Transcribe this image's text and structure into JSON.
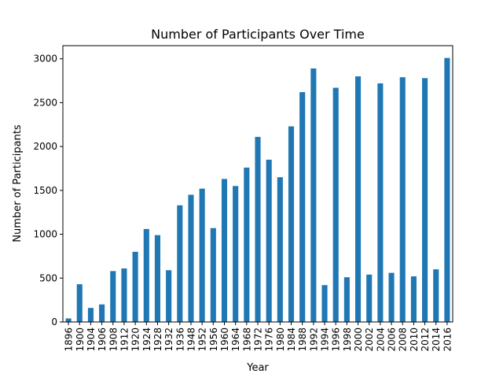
{
  "chart_data": {
    "type": "bar",
    "title": "Number of Participants Over Time",
    "xlabel": "Year",
    "ylabel": "Number of Participants",
    "categories": [
      "1896",
      "1900",
      "1904",
      "1906",
      "1908",
      "1912",
      "1920",
      "1924",
      "1928",
      "1932",
      "1936",
      "1948",
      "1952",
      "1956",
      "1960",
      "1964",
      "1968",
      "1972",
      "1976",
      "1980",
      "1984",
      "1988",
      "1992",
      "1994",
      "1996",
      "1998",
      "2000",
      "2002",
      "2004",
      "2006",
      "2008",
      "2010",
      "2012",
      "2014",
      "2016"
    ],
    "values": [
      40,
      430,
      160,
      200,
      580,
      610,
      800,
      1060,
      990,
      590,
      1330,
      1450,
      1520,
      1070,
      1630,
      1550,
      1760,
      2110,
      1850,
      1650,
      2230,
      2620,
      2890,
      420,
      2670,
      510,
      2800,
      540,
      2720,
      560,
      2790,
      520,
      2780,
      600,
      3010
    ],
    "ylim": [
      0,
      3150
    ],
    "yticks": [
      0,
      500,
      1000,
      1500,
      2000,
      2500,
      3000
    ],
    "bar_color": "#1f77b4",
    "grid": false,
    "legend": "none"
  }
}
